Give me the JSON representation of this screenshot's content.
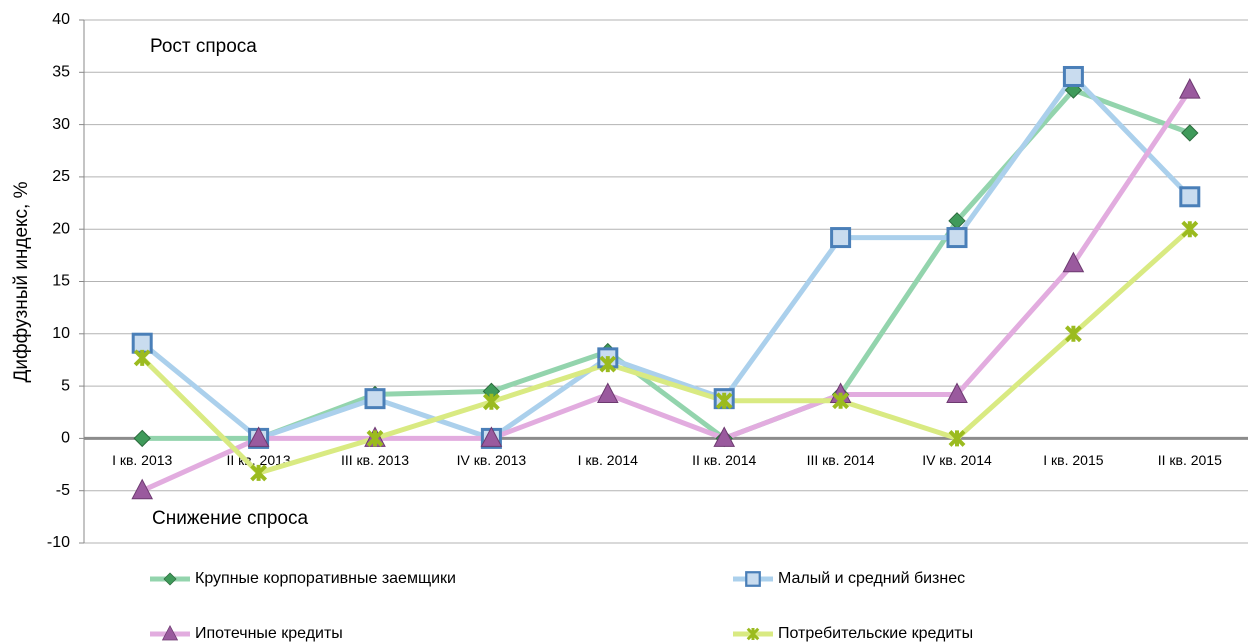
{
  "chart_data": {
    "type": "line",
    "y_label": "Диффузный индекс, %",
    "annotations": [
      "Рост спроса",
      "Снижение спроса"
    ],
    "categories": [
      "I кв. 2013",
      "II кв. 2013",
      "III кв. 2013",
      "IV кв. 2013",
      "I кв. 2014",
      "II кв. 2014",
      "III кв. 2014",
      "IV кв. 2014",
      "I кв. 2015",
      "II кв. 2015"
    ],
    "series": [
      {
        "name": "Крупные корпоративные заемщики",
        "color": "#93d4ad",
        "marker": "diamond",
        "marker_color": "#3f9a5a",
        "values": [
          0,
          0,
          4.2,
          4.5,
          8.3,
          0,
          4.2,
          20.8,
          33.3,
          29.2
        ]
      },
      {
        "name": "Малый и средний бизнес",
        "color": "#abd0ec",
        "marker": "square",
        "marker_color": "#4a7fb8",
        "values": [
          9.1,
          0,
          3.8,
          0,
          7.7,
          3.8,
          19.2,
          19.2,
          34.6,
          23.1
        ]
      },
      {
        "name": "Ипотечные кредиты",
        "color": "#e2acdf",
        "marker": "triangle",
        "marker_color": "#9a5a9e",
        "values": [
          -5,
          0,
          0,
          0,
          4.2,
          0,
          4.2,
          4.2,
          16.7,
          33.3
        ]
      },
      {
        "name": "Потребительские кредиты",
        "color": "#d9ea82",
        "marker": "x",
        "marker_color": "#9bbb1f",
        "values": [
          7.7,
          -3.3,
          0,
          3.5,
          7.1,
          3.6,
          3.6,
          0,
          10,
          20
        ]
      }
    ],
    "ylim": [
      -10,
      40
    ],
    "yticks": [
      -10,
      -5,
      0,
      5,
      10,
      15,
      20,
      25,
      30,
      35,
      40
    ],
    "grid": true
  }
}
